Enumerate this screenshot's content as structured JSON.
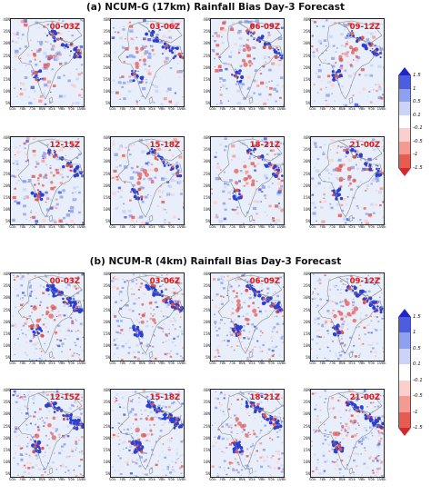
{
  "sections": [
    {
      "id": "a",
      "title": "(a) NCUM-G (17km) Rainfall Bias Day-3 Forecast",
      "panels": [
        "00-03Z",
        "03-06Z",
        "06-09Z",
        "09-12Z",
        "12-15Z",
        "15-18Z",
        "18-21Z",
        "21-00Z"
      ]
    },
    {
      "id": "b",
      "title": "(b) NCUM-R (4km) Rainfall Bias Day-3 Forecast",
      "panels": [
        "00-03Z",
        "03-06Z",
        "06-09Z",
        "09-12Z",
        "12-15Z",
        "15-18Z",
        "18-21Z",
        "21-00Z"
      ]
    }
  ],
  "lat_labels": [
    "40N",
    "35N",
    "30N",
    "25N",
    "20N",
    "15N",
    "10N",
    "5N"
  ],
  "lon_labels": [
    "65E",
    "70E",
    "75E",
    "80E",
    "85E",
    "90E",
    "95E",
    "100E"
  ],
  "colorbar": {
    "ticks": [
      "1.5",
      "1",
      "0.5",
      "0.1",
      "-0.1",
      "-0.5",
      "-1",
      "-1.5"
    ],
    "colors": [
      "#1f25c8",
      "#4d5de0",
      "#8ea1f0",
      "#c9d4f8",
      "#ffffff",
      "#fbd0cc",
      "#f39a92",
      "#e65c52",
      "#d6262b"
    ]
  },
  "map_colors": {
    "land_outline": "#8a8a8a",
    "wet_bias": "#2a3fd6",
    "dry_bias": "#e5534b",
    "light_wet": "#aebff2"
  }
}
